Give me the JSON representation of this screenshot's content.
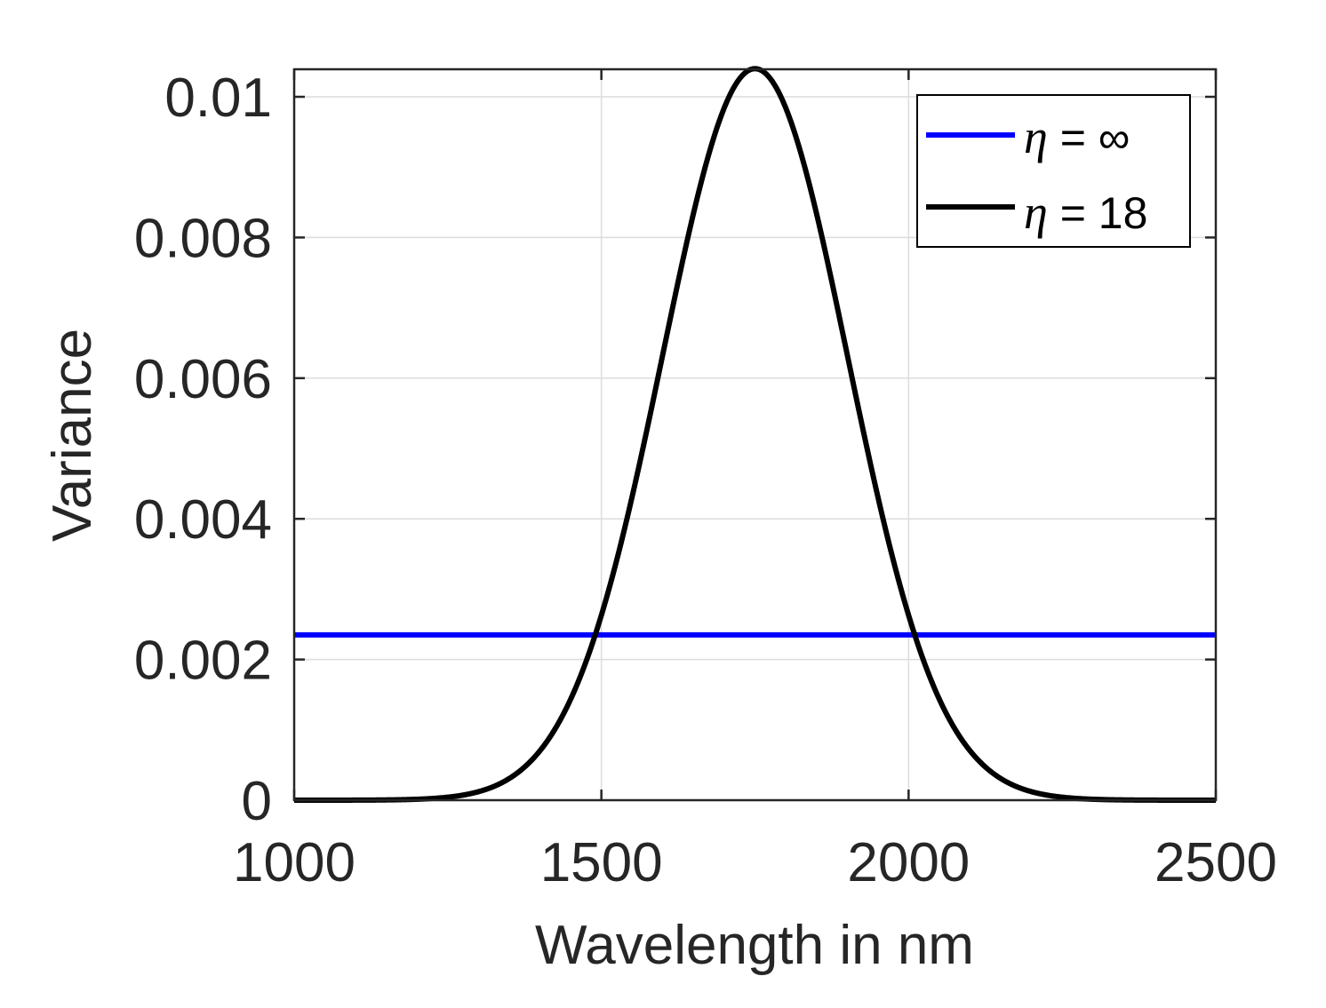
{
  "chart_data": {
    "type": "line",
    "title": "",
    "xlabel": "Wavelength in nm",
    "ylabel": "Variance",
    "xlim": [
      1000,
      2500
    ],
    "ylim": [
      0,
      0.0104
    ],
    "xticks": [
      1000,
      1500,
      2000,
      2500
    ],
    "xtick_labels": [
      "1000",
      "1500",
      "2000",
      "2500"
    ],
    "yticks": [
      0,
      0.002,
      0.004,
      0.006,
      0.008,
      0.01
    ],
    "ytick_labels": [
      "0",
      "0.002",
      "0.004",
      "0.006",
      "0.008",
      "0.01"
    ],
    "grid": true,
    "legend_position": "top-right",
    "series": [
      {
        "name": "η = ∞",
        "legend_symbol": "η",
        "legend_text": " = ∞",
        "color": "#0000ff",
        "x": [
          1000,
          2500
        ],
        "y": [
          0.00235,
          0.00235
        ]
      },
      {
        "name": "η = 18",
        "legend_symbol": "η",
        "legend_text": " = 18",
        "color": "#000000",
        "x": [
          1000,
          1050,
          1100,
          1150,
          1200,
          1250,
          1300,
          1350,
          1400,
          1450,
          1500,
          1550,
          1600,
          1650,
          1700,
          1750,
          1800,
          1850,
          1900,
          1950,
          2000,
          2050,
          2100,
          2150,
          2200,
          2250,
          2300,
          2350,
          2400,
          2450,
          2500
        ],
        "y": [
          0.0,
          0.0,
          0.0,
          0.0,
          1e-05,
          3e-05,
          0.0001,
          0.0003,
          0.0007,
          0.0014,
          0.0026,
          0.0043,
          0.0063,
          0.0083,
          0.0098,
          0.0104,
          0.0098,
          0.0083,
          0.0063,
          0.0043,
          0.0026,
          0.0014,
          0.0007,
          0.0003,
          0.0001,
          3e-05,
          1e-05,
          0.0,
          0.0,
          0.0,
          0.0
        ]
      }
    ]
  }
}
